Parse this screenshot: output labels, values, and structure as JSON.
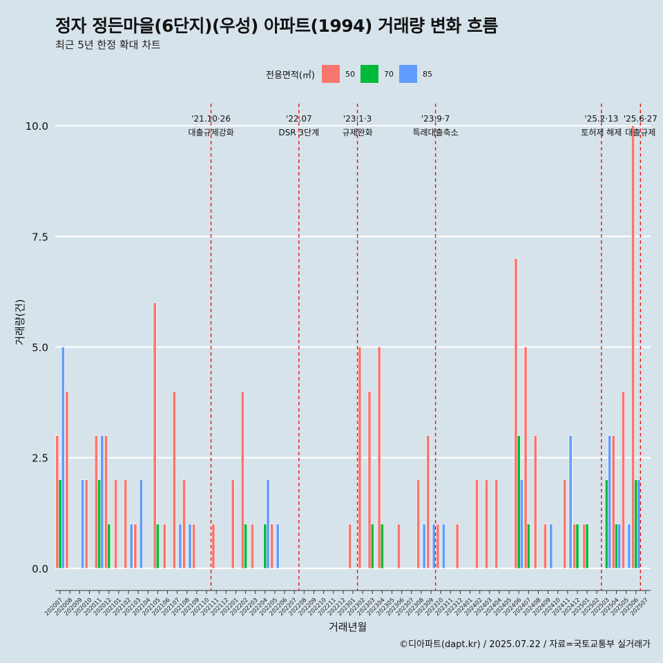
{
  "title": "정자 정든마을(6단지)(우성) 아파트(1994) 거래량 변화 흐름",
  "subtitle": "최근 5년 한정 확대 차트",
  "caption": "©디아파트(dapt.kr) / 2025.07.22 / 자료=국토교통부 실거래가",
  "chart_data": {
    "type": "bar",
    "xlabel": "거래년월",
    "ylabel": "거래량(건)",
    "ylim": [
      -0.5,
      10.5
    ],
    "yticks": [
      0.0,
      2.5,
      5.0,
      7.5,
      10.0
    ],
    "ytick_labels": [
      "0.0",
      "2.5",
      "5.0",
      "7.5",
      "10.0"
    ],
    "legend": {
      "title": "전용면적(㎡)",
      "position": "top",
      "entries": [
        {
          "label": "50",
          "color": "#f8766d"
        },
        {
          "label": "70",
          "color": "#00ba38"
        },
        {
          "label": "85",
          "color": "#619cff"
        }
      ]
    },
    "categories": [
      "202007",
      "202008",
      "202009",
      "202010",
      "202011",
      "202012",
      "202101",
      "202102",
      "202103",
      "202104",
      "202105",
      "202106",
      "202107",
      "202108",
      "202109",
      "202110",
      "202111",
      "202112",
      "202201",
      "202202",
      "202203",
      "202204",
      "202205",
      "202206",
      "202207",
      "202208",
      "202209",
      "202210",
      "202211",
      "202212",
      "202301",
      "202302",
      "202303",
      "202304",
      "202305",
      "202306",
      "202307",
      "202308",
      "202309",
      "202310",
      "202311",
      "202312",
      "202401",
      "202402",
      "202403",
      "202404",
      "202405",
      "202406",
      "202407",
      "202408",
      "202409",
      "202410",
      "202411",
      "202412",
      "202501",
      "202502",
      "202503",
      "202504",
      "202505",
      "202506",
      "202507"
    ],
    "series": [
      {
        "name": "50",
        "color": "#f8766d",
        "values": [
          3,
          4,
          0,
          2,
          3,
          3,
          2,
          2,
          1,
          0,
          6,
          1,
          4,
          2,
          1,
          0,
          1,
          0,
          2,
          4,
          1,
          0,
          1,
          0,
          0,
          0,
          0,
          0,
          0,
          0,
          1,
          5,
          4,
          5,
          0,
          1,
          0,
          2,
          3,
          1,
          0,
          1,
          0,
          2,
          2,
          2,
          0,
          7,
          5,
          3,
          1,
          0,
          2,
          1,
          1,
          0,
          0,
          3,
          4,
          10,
          0
        ]
      },
      {
        "name": "70",
        "color": "#00ba38",
        "values": [
          2,
          0,
          0,
          0,
          2,
          1,
          0,
          0,
          0,
          0,
          1,
          0,
          0,
          0,
          0,
          0,
          0,
          0,
          0,
          1,
          0,
          1,
          0,
          0,
          0,
          0,
          0,
          0,
          0,
          0,
          0,
          0,
          1,
          1,
          0,
          0,
          0,
          0,
          0,
          0,
          0,
          0,
          0,
          0,
          0,
          0,
          0,
          3,
          1,
          0,
          0,
          0,
          0,
          1,
          1,
          0,
          2,
          1,
          0,
          2,
          0
        ]
      },
      {
        "name": "85",
        "color": "#619cff",
        "values": [
          5,
          0,
          2,
          0,
          3,
          0,
          0,
          1,
          2,
          0,
          0,
          0,
          1,
          1,
          0,
          0,
          0,
          0,
          0,
          0,
          0,
          2,
          1,
          0,
          0,
          0,
          0,
          0,
          0,
          0,
          0,
          0,
          0,
          0,
          0,
          0,
          0,
          1,
          1,
          1,
          0,
          0,
          0,
          0,
          0,
          0,
          0,
          2,
          0,
          0,
          1,
          0,
          3,
          0,
          0,
          0,
          3,
          1,
          1,
          2,
          0
        ]
      }
    ],
    "events": [
      {
        "date": "'21.10·26",
        "label": "대출규제강화",
        "after": "202110"
      },
      {
        "date": "'22.07",
        "label": "DSR 3단계",
        "after": "202207"
      },
      {
        "date": "'23.1·3",
        "label": "규제완화",
        "after": "202301"
      },
      {
        "date": "'23.9·7",
        "label": "특례대출축소",
        "after": "202309"
      },
      {
        "date": "'25.2·13",
        "label": "토허제 해제",
        "after": "202502"
      },
      {
        "date": "'25.6·27",
        "label": "대출규제",
        "after": "202506"
      }
    ]
  }
}
